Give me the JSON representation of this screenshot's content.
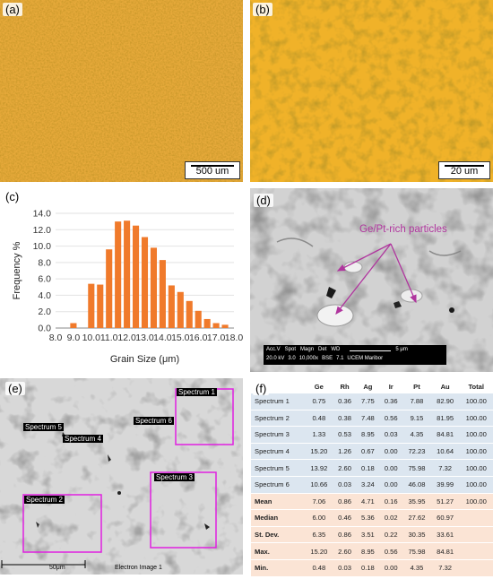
{
  "panels": {
    "a": {
      "label": "(a)",
      "scale": "500 um"
    },
    "b": {
      "label": "(b)",
      "scale": "20 um"
    },
    "c": {
      "label": "(c)"
    },
    "d": {
      "label": "(d)",
      "annotation": "Ge/Pt-rich particles",
      "sem_bar": {
        "row1": [
          "Acc.V",
          "Spot",
          "Magn",
          "Det",
          "WD"
        ],
        "row2": [
          "20.0 kV",
          "3.0",
          "10,000x",
          "BSE",
          "7.1",
          "UCEM Maribor"
        ],
        "scale": "5 μm"
      }
    },
    "e": {
      "label": "(e)",
      "spectra": [
        "Spectrum 1",
        "Spectrum 2",
        "Spectrum 3",
        "Spectrum 4",
        "Spectrum 5",
        "Spectrum 6"
      ],
      "scale": "50μm",
      "image_name": "Electron Image 1"
    },
    "f": {
      "label": "(f)"
    }
  },
  "chart_data": {
    "type": "bar",
    "categories": [
      "8.0",
      "8.5",
      "9.0",
      "9.5",
      "10.0",
      "10.5",
      "11.0",
      "11.5",
      "12.0",
      "12.5",
      "13.0",
      "13.5",
      "14.0",
      "14.5",
      "15.0",
      "15.5",
      "16.0",
      "16.5",
      "17.0",
      "17.5",
      "18.0"
    ],
    "values": [
      0,
      0,
      0.6,
      0,
      5.4,
      5.3,
      9.6,
      13.0,
      13.1,
      12.5,
      11.1,
      9.8,
      8.3,
      5.2,
      4.4,
      3.3,
      2.1,
      1.1,
      0.6,
      0.4,
      0
    ],
    "xlabel": "Grain Size (μm)",
    "ylabel": "Frequency %",
    "xticks": [
      "8.0",
      "9.0",
      "10.0",
      "11.0",
      "12.0",
      "13.0",
      "14.0",
      "15.0",
      "16.0",
      "17.0",
      "18.0"
    ],
    "yticks": [
      "0.0",
      "2.0",
      "4.0",
      "6.0",
      "8.0",
      "10.0",
      "12.0",
      "14.0"
    ],
    "ylim": [
      0,
      14
    ],
    "bar_color": "#f07a2b"
  },
  "table": {
    "headers": [
      "",
      "Ge",
      "Rh",
      "Ag",
      "Ir",
      "Pt",
      "Au",
      "Total"
    ],
    "rows": [
      [
        "Spectrum 1",
        "0.75",
        "0.36",
        "7.75",
        "0.36",
        "7.88",
        "82.90",
        "100.00"
      ],
      [
        "Spectrum 2",
        "0.48",
        "0.38",
        "7.48",
        "0.56",
        "9.15",
        "81.95",
        "100.00"
      ],
      [
        "Spectrum 3",
        "1.33",
        "0.53",
        "8.95",
        "0.03",
        "4.35",
        "84.81",
        "100.00"
      ],
      [
        "Spectrum 4",
        "15.20",
        "1.26",
        "0.67",
        "0.00",
        "72.23",
        "10.64",
        "100.00"
      ],
      [
        "Spectrum 5",
        "13.92",
        "2.60",
        "0.18",
        "0.00",
        "75.98",
        "7.32",
        "100.00"
      ],
      [
        "Spectrum 6",
        "10.66",
        "0.03",
        "3.24",
        "0.00",
        "46.08",
        "39.99",
        "100.00"
      ]
    ],
    "stats": [
      [
        "Mean",
        "7.06",
        "0.86",
        "4.71",
        "0.16",
        "35.95",
        "51.27",
        "100.00"
      ],
      [
        "Median",
        "6.00",
        "0.46",
        "5.36",
        "0.02",
        "27.62",
        "60.97",
        ""
      ],
      [
        "St. Dev.",
        "6.35",
        "0.86",
        "3.51",
        "0.22",
        "30.35",
        "33.61",
        ""
      ],
      [
        "Max.",
        "15.20",
        "2.60",
        "8.95",
        "0.56",
        "75.98",
        "84.81",
        ""
      ],
      [
        "Min.",
        "0.48",
        "0.03",
        "0.18",
        "0.00",
        "4.35",
        "7.32",
        ""
      ]
    ]
  },
  "colors": {
    "box_magenta": "#e020e0",
    "arrow_magenta": "#b0359e"
  }
}
